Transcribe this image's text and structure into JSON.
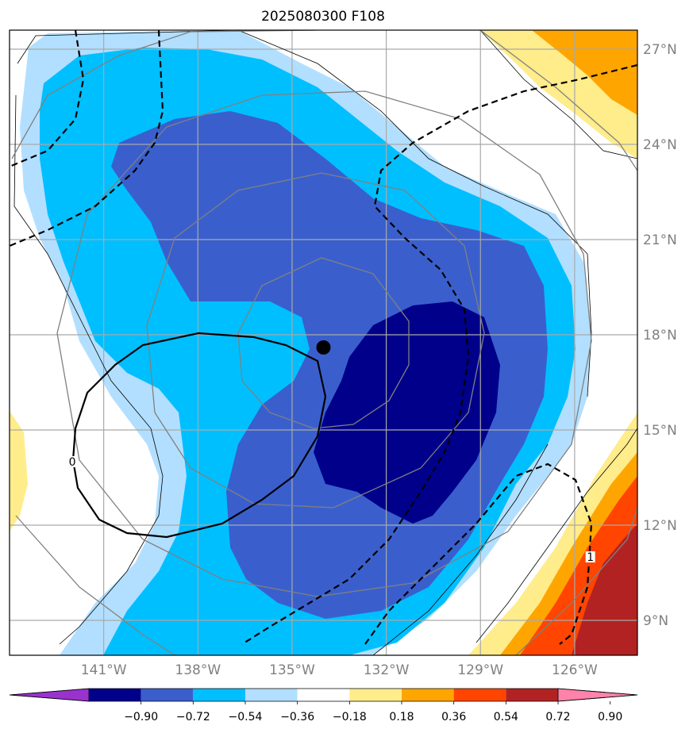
{
  "chart_data": {
    "type": "contour-map",
    "title": "2025080300 F108",
    "x_ticks": [
      "141°W",
      "138°W",
      "135°W",
      "132°W",
      "129°W",
      "126°W"
    ],
    "y_ticks": [
      "27°N",
      "24°N",
      "21°N",
      "18°N",
      "15°N",
      "12°N",
      "9°N"
    ],
    "lon_values": [
      -141,
      -138,
      -135,
      -132,
      -129,
      -126
    ],
    "lat_values": [
      27,
      24,
      21,
      18,
      15,
      12,
      9
    ],
    "lon_range": [
      -144,
      -124
    ],
    "lat_range": [
      7.9,
      27.6
    ],
    "grid": true,
    "center_marker": {
      "lon": -134.0,
      "lat": 17.6
    },
    "contour_labels": [
      {
        "text": "0",
        "lon": -142.0,
        "lat": 14.0
      },
      {
        "text": "1",
        "lon": -125.5,
        "lat": 11.0
      }
    ],
    "colorbar": {
      "levels": [
        "−0.90",
        "−0.72",
        "−0.54",
        "−0.36",
        "−0.18",
        "0.18",
        "0.36",
        "0.54",
        "0.72",
        "0.90"
      ],
      "colors": [
        "#9a32cd",
        "#00008b",
        "#3a5fcd",
        "#00bfff",
        "#b2dfff",
        "#ffffff",
        "#ffec8b",
        "#ffa500",
        "#ff4500",
        "#b22222",
        "#ff82ab"
      ]
    }
  }
}
